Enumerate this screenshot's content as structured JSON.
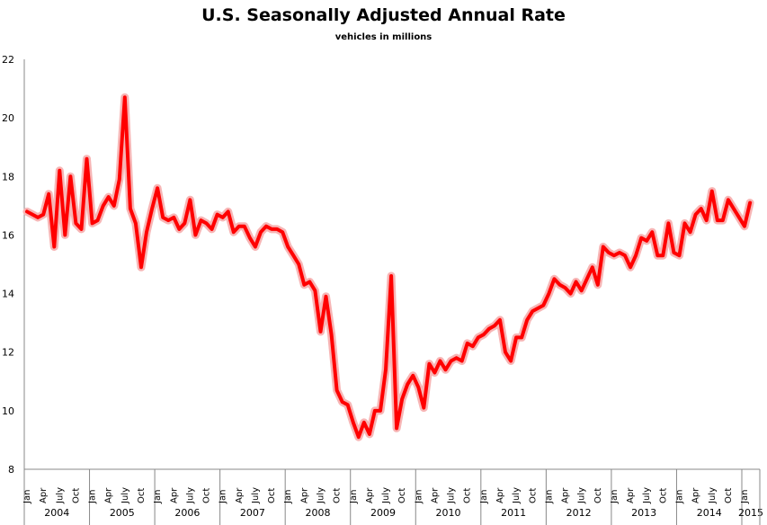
{
  "chart_data": {
    "type": "line",
    "title": "U.S. Seasonally Adjusted Annual Rate",
    "subtitle": "vehicles in millions",
    "xlabel": "",
    "ylabel": "",
    "ylim": [
      8,
      22
    ],
    "yticks": [
      "8",
      "10",
      "12",
      "14",
      "16",
      "18",
      "20",
      "22"
    ],
    "grid": false,
    "legend": "none",
    "line_color": "#ff0000",
    "years": [
      "2004",
      "2005",
      "2006",
      "2007",
      "2008",
      "2009",
      "2010",
      "2011",
      "2012",
      "2013",
      "2014",
      "2015"
    ],
    "month_tick_labels": [
      "Jan",
      "Apr",
      "July",
      "Oct"
    ],
    "start": "2004-01",
    "end": "2015-02",
    "values": [
      16.8,
      16.7,
      16.6,
      16.7,
      17.4,
      15.6,
      18.2,
      16.0,
      18.0,
      16.4,
      16.2,
      18.6,
      16.4,
      16.5,
      17.0,
      17.3,
      17.0,
      17.9,
      20.7,
      16.9,
      16.4,
      14.9,
      16.1,
      16.9,
      17.6,
      16.6,
      16.5,
      16.6,
      16.2,
      16.4,
      17.2,
      16.0,
      16.5,
      16.4,
      16.2,
      16.7,
      16.6,
      16.8,
      16.1,
      16.3,
      16.3,
      15.9,
      15.6,
      16.1,
      16.3,
      16.2,
      16.2,
      16.1,
      15.6,
      15.3,
      15.0,
      14.3,
      14.4,
      14.1,
      12.7,
      13.9,
      12.6,
      10.7,
      10.3,
      10.2,
      9.6,
      9.1,
      9.6,
      9.2,
      10.0,
      10.0,
      11.4,
      14.6,
      9.4,
      10.4,
      10.9,
      11.2,
      10.8,
      10.1,
      11.6,
      11.3,
      11.7,
      11.4,
      11.7,
      11.8,
      11.7,
      12.3,
      12.2,
      12.5,
      12.6,
      12.8,
      12.9,
      13.1,
      12.0,
      11.7,
      12.5,
      12.5,
      13.1,
      13.4,
      13.5,
      13.6,
      14.0,
      14.5,
      14.3,
      14.2,
      14.0,
      14.4,
      14.1,
      14.5,
      14.9,
      14.3,
      15.6,
      15.4,
      15.3,
      15.4,
      15.3,
      14.9,
      15.3,
      15.9,
      15.8,
      16.1,
      15.3,
      15.3,
      16.4,
      15.4,
      15.3,
      16.4,
      16.1,
      16.7,
      16.9,
      16.5,
      17.5,
      16.5,
      16.5,
      17.2,
      16.9,
      16.6,
      16.3,
      17.1
    ]
  }
}
